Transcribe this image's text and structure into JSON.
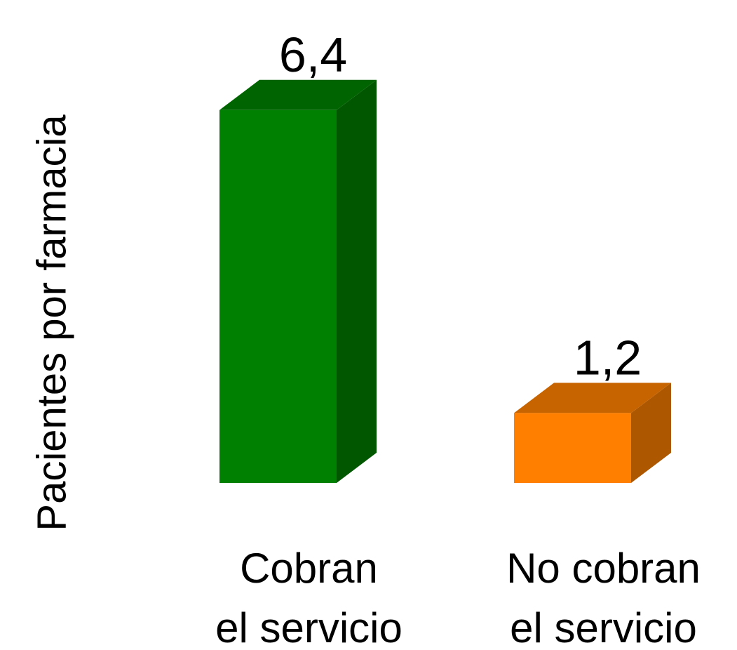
{
  "chart_data": {
    "type": "bar3d",
    "ylabel": "Pacientes por farmacia",
    "categories": [
      [
        "Cobran",
        "el servicio"
      ],
      [
        "No cobran",
        "el servicio"
      ]
    ],
    "values": [
      6.4,
      1.2
    ],
    "value_labels": [
      "6,4",
      "1,2"
    ],
    "colors": [
      "#008000",
      "#ff8000"
    ]
  }
}
